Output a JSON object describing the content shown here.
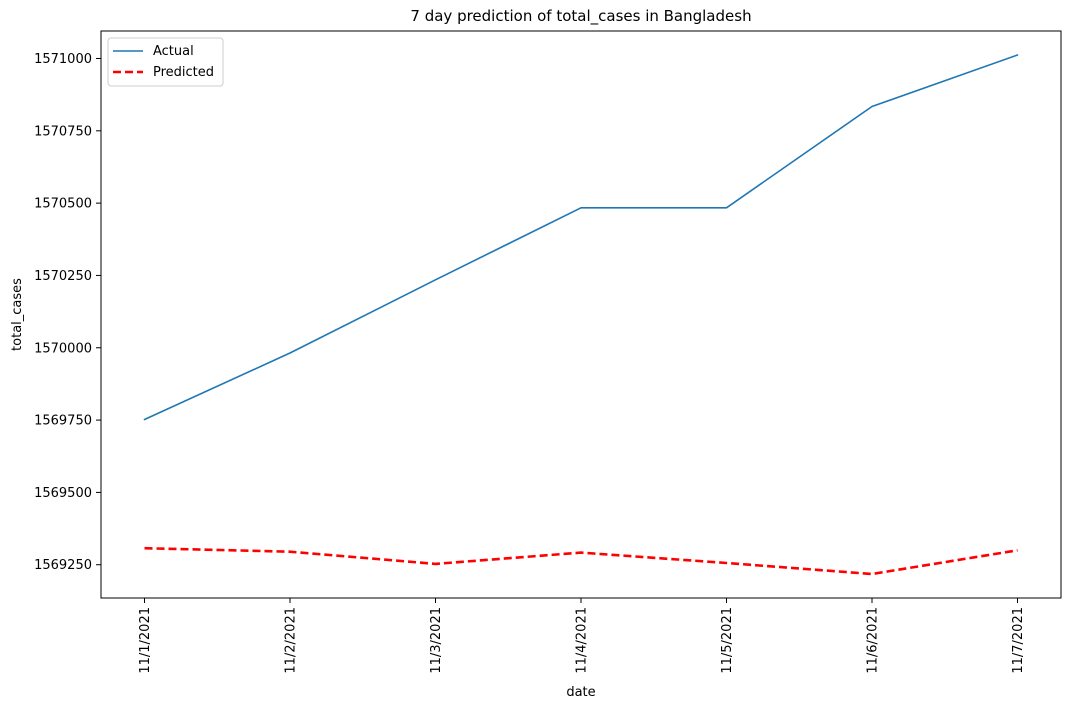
{
  "chart_data": {
    "type": "line",
    "title": "7 day prediction of total_cases in Bangladesh",
    "xlabel": "date",
    "ylabel": "total_cases",
    "categories": [
      "11/1/2021",
      "11/2/2021",
      "11/3/2021",
      "11/4/2021",
      "11/5/2021",
      "11/6/2021",
      "11/7/2021"
    ],
    "series": [
      {
        "name": "Actual",
        "color": "#1f77b4",
        "style": "solid",
        "values": [
          1569752,
          1569982,
          1570235,
          1570484,
          1570484,
          1570834,
          1571012
        ]
      },
      {
        "name": "Predicted",
        "color": "#ff0000",
        "style": "dashed",
        "values": [
          1569307,
          1569295,
          1569253,
          1569292,
          1569256,
          1569218,
          1569300
        ]
      }
    ],
    "ylim": [
      1569135,
      1571095
    ],
    "yticks": [
      1569250,
      1569500,
      1569750,
      1570000,
      1570250,
      1570500,
      1570750,
      1571000
    ],
    "grid": false,
    "legend": "top-left"
  }
}
